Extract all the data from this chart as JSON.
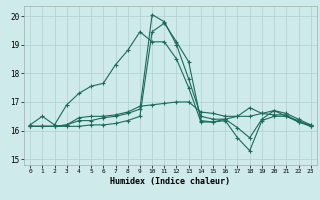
{
  "xlabel": "Humidex (Indice chaleur)",
  "bg_color": "#ceeaea",
  "grid_color": "#b0d0d0",
  "line_color": "#1a6b5a",
  "xlim": [
    -0.5,
    23.5
  ],
  "ylim": [
    14.8,
    20.35
  ],
  "yticks": [
    15,
    16,
    17,
    18,
    19,
    20
  ],
  "xticks": [
    0,
    1,
    2,
    3,
    4,
    5,
    6,
    7,
    8,
    9,
    10,
    11,
    12,
    13,
    14,
    15,
    16,
    17,
    18,
    19,
    20,
    21,
    22,
    23
  ],
  "series": [
    [
      16.2,
      16.5,
      16.2,
      16.9,
      17.3,
      17.55,
      17.65,
      18.3,
      18.8,
      19.45,
      19.1,
      19.1,
      18.5,
      17.5,
      16.3,
      16.3,
      16.4,
      16.5,
      16.8,
      16.6,
      16.55,
      16.55,
      16.3,
      16.2
    ],
    [
      16.15,
      16.15,
      16.15,
      16.15,
      16.15,
      16.2,
      16.2,
      16.25,
      16.35,
      16.5,
      19.45,
      19.75,
      19.1,
      18.4,
      16.35,
      16.3,
      16.35,
      15.75,
      15.3,
      16.35,
      16.5,
      16.5,
      16.3,
      16.15
    ],
    [
      16.15,
      16.15,
      16.15,
      16.2,
      16.35,
      16.35,
      16.45,
      16.5,
      16.6,
      16.75,
      20.05,
      19.8,
      19.0,
      17.8,
      16.5,
      16.4,
      16.4,
      16.1,
      15.75,
      16.4,
      16.7,
      16.5,
      16.35,
      16.15
    ],
    [
      16.15,
      16.15,
      16.15,
      16.2,
      16.45,
      16.5,
      16.5,
      16.55,
      16.65,
      16.85,
      16.9,
      16.95,
      17.0,
      17.0,
      16.65,
      16.6,
      16.5,
      16.5,
      16.5,
      16.6,
      16.7,
      16.6,
      16.4,
      16.2
    ]
  ]
}
